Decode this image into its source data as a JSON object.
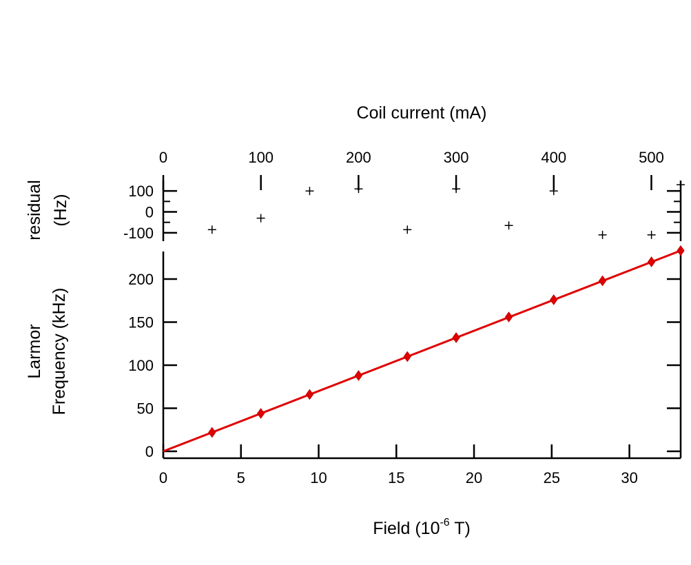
{
  "chart_data": {
    "type": "scatter",
    "top_axis": {
      "label": "Coil current (mA)",
      "range": [
        0,
        530
      ],
      "ticks": [
        0,
        100,
        200,
        300,
        400,
        500
      ]
    },
    "bottom_axis": {
      "label_main": "Field (10",
      "label_sup": "-6",
      "label_end": " T)",
      "range": [
        0,
        33.3
      ],
      "ticks": [
        0,
        5,
        10,
        15,
        20,
        25,
        30
      ]
    },
    "residual_panel": {
      "ylabel_line1": "residual",
      "ylabel_line2": "(Hz)",
      "ylim": [
        -140,
        150
      ],
      "ticks": [
        100,
        0,
        -100
      ],
      "series": {
        "name": "residual",
        "x": [
          3.14,
          6.28,
          9.42,
          12.57,
          15.71,
          18.85,
          22.24,
          25.13,
          28.27,
          31.42,
          33.3
        ],
        "y": [
          -85,
          -30,
          100,
          110,
          -85,
          110,
          -65,
          100,
          -110,
          -110,
          130
        ]
      }
    },
    "main_panel": {
      "ylabel_line1": "Larmor",
      "ylabel_line2": "Frequency (kHz)",
      "ylim": [
        -8,
        232
      ],
      "ticks": [
        0,
        50,
        100,
        150,
        200
      ],
      "series": {
        "name": "Larmor frequency",
        "color": "#e00000",
        "x": [
          3.14,
          6.28,
          9.42,
          12.57,
          15.71,
          18.85,
          22.24,
          25.13,
          28.27,
          31.42,
          33.3
        ],
        "y": [
          22,
          44,
          66,
          88,
          110,
          132,
          156,
          176,
          198,
          220,
          233
        ]
      },
      "fit": {
        "color": "#e00000",
        "x": [
          0,
          33.3
        ],
        "y": [
          0,
          233
        ]
      }
    }
  }
}
